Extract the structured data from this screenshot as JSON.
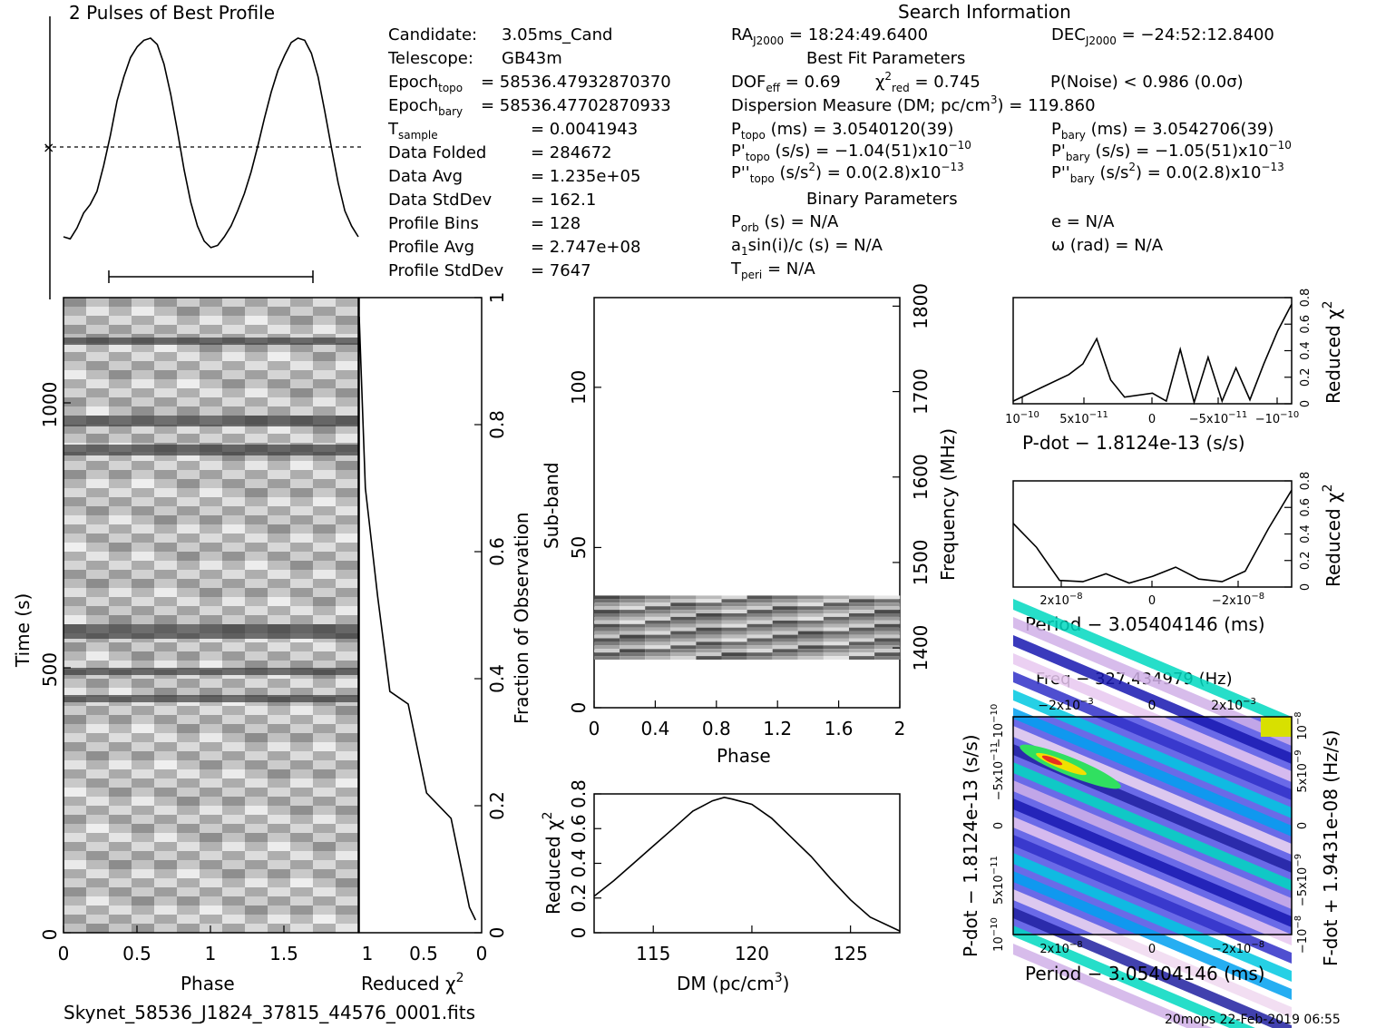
{
  "header": {
    "profile_title": "2 Pulses of Best Profile",
    "search_title": "Search Information",
    "best_fit_title": "Best Fit Parameters",
    "binary_title": "Binary Parameters",
    "filename": "Skynet_58536_J1824_37815_44576_0001.fits",
    "footer_stamp": "20mops 22-Feb-2019 06:55"
  },
  "info_left": [
    {
      "label": "Candidate:",
      "value": "3.05ms_Cand"
    },
    {
      "label": "Telescope:",
      "value": "GB43m"
    },
    {
      "label": "Epoch",
      "sub": "topo",
      "value": "= 58536.47932870370"
    },
    {
      "label": "Epoch",
      "sub": "bary",
      "value": "= 58536.47702870933"
    },
    {
      "label": "T",
      "sub": "sample",
      "value": "=   0.0041943"
    },
    {
      "label": "Data Folded",
      "value": "=   284672"
    },
    {
      "label": "Data Avg",
      "value": "=   1.235e+05"
    },
    {
      "label": "Data StdDev",
      "value": "=   162.1"
    },
    {
      "label": "Profile Bins",
      "value": "=   128"
    },
    {
      "label": "Profile Avg",
      "value": "=   2.747e+08"
    },
    {
      "label": "Profile StdDev",
      "value": "=   7647"
    }
  ],
  "info_mid": {
    "ra": "RA",
    "ra_sub": "J2000",
    "ra_value": " = 18:24:49.6400",
    "dec": "DEC",
    "dec_sub": "J2000",
    "dec_value": " = −24:52:12.8400",
    "dof": "DOF",
    "dof_sub": "eff",
    "dof_value": " = 0.69",
    "chi": "χ",
    "chi_sup": "2",
    "chi_sub": "red",
    "chi_value": " = 0.745",
    "pnoise": "P(Noise) < 0.986   (0.0σ)",
    "dm_line": "Dispersion Measure (DM; pc/cm",
    "dm_sup": "3",
    "dm_value": ") = 119.860",
    "ptopo": "P",
    "ptopo_sub": "topo",
    "ptopo_value": " (ms) =  3.0540120(39)",
    "pbary": "P",
    "pbary_sub": "bary",
    "pbary_value": " (ms) =  3.0542706(39)",
    "pdtopo": "P'",
    "pdtopo_sub": "topo",
    "pdtopo_value": " (s/s) = −1.04(51)x10",
    "pdtopo_exp": "−10",
    "pdbary": "P'",
    "pdbary_sub": "bary",
    "pdbary_value": " (s/s) = −1.05(51)x10",
    "pdbary_exp": "−10",
    "pddtopo": "P''",
    "pddtopo_sub": "topo",
    "pddtopo_value": " (s/s",
    "pddtopo_sup": "2",
    "pddtopo_value2": ") = 0.0(2.8)x10",
    "pddtopo_exp": "−13",
    "pddbary": "P''",
    "pddbary_sub": "bary",
    "pddbary_value": " (s/s",
    "pddbary_sup": "2",
    "pddbary_value2": ") = 0.0(2.8)x10",
    "pddbary_exp": "−13",
    "porb": "P",
    "porb_sub": "orb",
    "porb_value": " (s) = N/A",
    "e_value": "e = N/A",
    "a1": "a",
    "a1_sub": "1",
    "a1_value": "sin(i)/c (s) = N/A",
    "omega_value": "ω (rad) = N/A",
    "tperi": "T",
    "tperi_sub": "peri",
    "tperi_value": " = N/A"
  },
  "labels": {
    "time_axis": "Time (s)",
    "phase_axis": "Phase",
    "redchi_axis": "Reduced χ",
    "redchi_sup": "2",
    "fraction_axis": "Fraction of Observation",
    "subband_axis": "Sub-band",
    "freq_axis": "Frequency (MHz)",
    "dm_axis": "DM (pc/cm",
    "dm_axis_sup": "3",
    "dm_axis_end": ")",
    "pdot_axis": "P-dot − 1.8124e-13 (s/s)",
    "period_axis": "Period − 3.05404146 (ms)",
    "period_axis2": "Period − 3.05404146 (ms)",
    "freq_top_axis": "Freq − 327.434979 (Hz)",
    "pdot_left_axis": "P-dot − 1.8124e-13 (s/s)",
    "fdot_right_axis": "F-dot + 1.9431e-08 (Hz/s)"
  },
  "ticks": {
    "time": [
      "0",
      "500",
      "1000"
    ],
    "phase_main": [
      "0",
      "0.5",
      "1",
      "1.5"
    ],
    "redchi_bottom": [
      "1",
      "0.5",
      "0"
    ],
    "fraction": [
      "0",
      "0.2",
      "0.4",
      "0.6",
      "0.8",
      "1"
    ],
    "subband": [
      "0",
      "50",
      "100"
    ],
    "phase_sub": [
      "0",
      "0.4",
      "0.8",
      "1.2",
      "1.6",
      "2"
    ],
    "freq": [
      "1400",
      "1500",
      "1600",
      "1700",
      "1800"
    ],
    "dm_x": [
      "115",
      "120",
      "125"
    ],
    "dm_y": [
      "0",
      "0.2",
      "0.4",
      "0.6",
      "0.8"
    ],
    "chi_small": [
      "0",
      "0.2",
      "0.4",
      "0.6",
      "0.8"
    ],
    "pdot_x": [
      "10",
      "−10",
      "5x10",
      "−11",
      "0",
      "−5x10",
      "−11",
      "−10",
      "−10"
    ],
    "period_x": [
      "2x10",
      "−8",
      "0",
      "−2x10",
      "−8"
    ],
    "freq_top": [
      "−2x10",
      "−3",
      "0",
      "2x10",
      "−3"
    ],
    "pdot_y": [
      "10",
      "−10",
      "5x10",
      "−11",
      "0",
      "−5x10",
      "−11",
      "−10",
      "−10"
    ],
    "fdot_y": [
      "−10",
      "−8",
      "−5x10",
      "−9",
      "0",
      "5x10",
      "−9",
      "10",
      "−8"
    ]
  },
  "chart_data": [
    {
      "type": "line",
      "title": "2 Pulses of Best Profile",
      "x_range": [
        0,
        2
      ],
      "values": [
        0.08,
        0.07,
        0.12,
        0.19,
        0.23,
        0.29,
        0.41,
        0.55,
        0.71,
        0.82,
        0.91,
        0.96,
        0.99,
        1.0,
        0.97,
        0.88,
        0.74,
        0.57,
        0.39,
        0.24,
        0.13,
        0.06,
        0.03,
        0.04,
        0.08,
        0.13,
        0.2,
        0.28,
        0.38,
        0.5,
        0.63,
        0.75,
        0.85,
        0.92,
        0.98,
        1.0,
        0.99,
        0.93,
        0.82,
        0.66,
        0.49,
        0.33,
        0.2,
        0.13,
        0.08
      ],
      "annotations": [
        "mean level (dotted)",
        "error bar"
      ]
    },
    {
      "type": "heatmap",
      "xlabel": "Phase",
      "ylabel": "Time (s)",
      "x_range": [
        0,
        2
      ],
      "y_range": [
        0,
        1200
      ],
      "colormap": "grayscale"
    },
    {
      "type": "line",
      "xlabel": "Reduced χ2",
      "ylabel": "Fraction of Observation",
      "x_range": [
        1,
        0
      ],
      "y_range": [
        0,
        1
      ],
      "x": [
        0.05,
        0.1,
        0.25,
        0.45,
        0.6,
        0.75,
        0.85,
        0.95,
        1.0
      ],
      "y": [
        0.02,
        0.04,
        0.18,
        0.22,
        0.36,
        0.38,
        0.53,
        0.7,
        0.97
      ]
    },
    {
      "type": "heatmap",
      "xlabel": "Phase",
      "ylabel": "Sub-band",
      "y2label": "Frequency (MHz)",
      "x_range": [
        0,
        2
      ],
      "y_range": [
        0,
        128
      ],
      "freq_range": [
        1330,
        1810
      ],
      "filled_subbands": [
        15,
        35
      ],
      "colormap": "grayscale"
    },
    {
      "type": "line",
      "xlabel": "DM (pc/cm3)",
      "ylabel": "Reduced χ2",
      "x_range": [
        112,
        127.5
      ],
      "y_range": [
        0,
        0.8
      ],
      "x": [
        112,
        113,
        114,
        115,
        116,
        117,
        118,
        118.6,
        119,
        120,
        121,
        122,
        123,
        124,
        125,
        126,
        127.5
      ],
      "y": [
        0.21,
        0.3,
        0.4,
        0.5,
        0.6,
        0.7,
        0.76,
        0.78,
        0.77,
        0.74,
        0.66,
        0.55,
        0.44,
        0.31,
        0.19,
        0.09,
        0.01
      ]
    },
    {
      "type": "line",
      "xlabel": "P-dot − 1.8124e-13 (s/s)",
      "ylabel": "Reduced χ2",
      "x_range": [
        1e-10,
        -1e-10
      ],
      "y_range": [
        0,
        0.8
      ],
      "x": [
        1e-10,
        8e-11,
        6e-11,
        5e-11,
        4e-11,
        3e-11,
        2e-11,
        0,
        -1e-11,
        -2e-11,
        -3e-11,
        -4e-11,
        -5e-11,
        -6e-11,
        -7e-11,
        -8e-11,
        -9e-11,
        -1e-10
      ],
      "y": [
        0.02,
        0.12,
        0.22,
        0.3,
        0.49,
        0.18,
        0.05,
        0.08,
        0.02,
        0.41,
        0.01,
        0.35,
        0.02,
        0.27,
        0.03,
        0.3,
        0.55,
        0.75
      ]
    },
    {
      "type": "line",
      "xlabel": "Period − 3.05404146 (ms)",
      "ylabel": "Reduced χ2",
      "x_range": [
        3e-08,
        -3e-08
      ],
      "y_range": [
        0,
        0.8
      ],
      "x": [
        3e-08,
        2.5e-08,
        2e-08,
        1.5e-08,
        1e-08,
        5e-09,
        0,
        -5e-09,
        -1e-08,
        -1.5e-08,
        -2e-08,
        -2.5e-08,
        -3e-08
      ],
      "y": [
        0.48,
        0.3,
        0.05,
        0.04,
        0.1,
        0.03,
        0.08,
        0.15,
        0.06,
        0.04,
        0.12,
        0.44,
        0.73
      ]
    },
    {
      "type": "heatmap",
      "xlabel": "Period − 3.05404146 (ms)",
      "ylabel": "P-dot − 1.8124e-13 (s/s)",
      "x2label": "Freq − 327.434979 (Hz)",
      "y2label": "F-dot + 1.9431e-08 (Hz/s)",
      "colormap": "rainbow"
    }
  ]
}
